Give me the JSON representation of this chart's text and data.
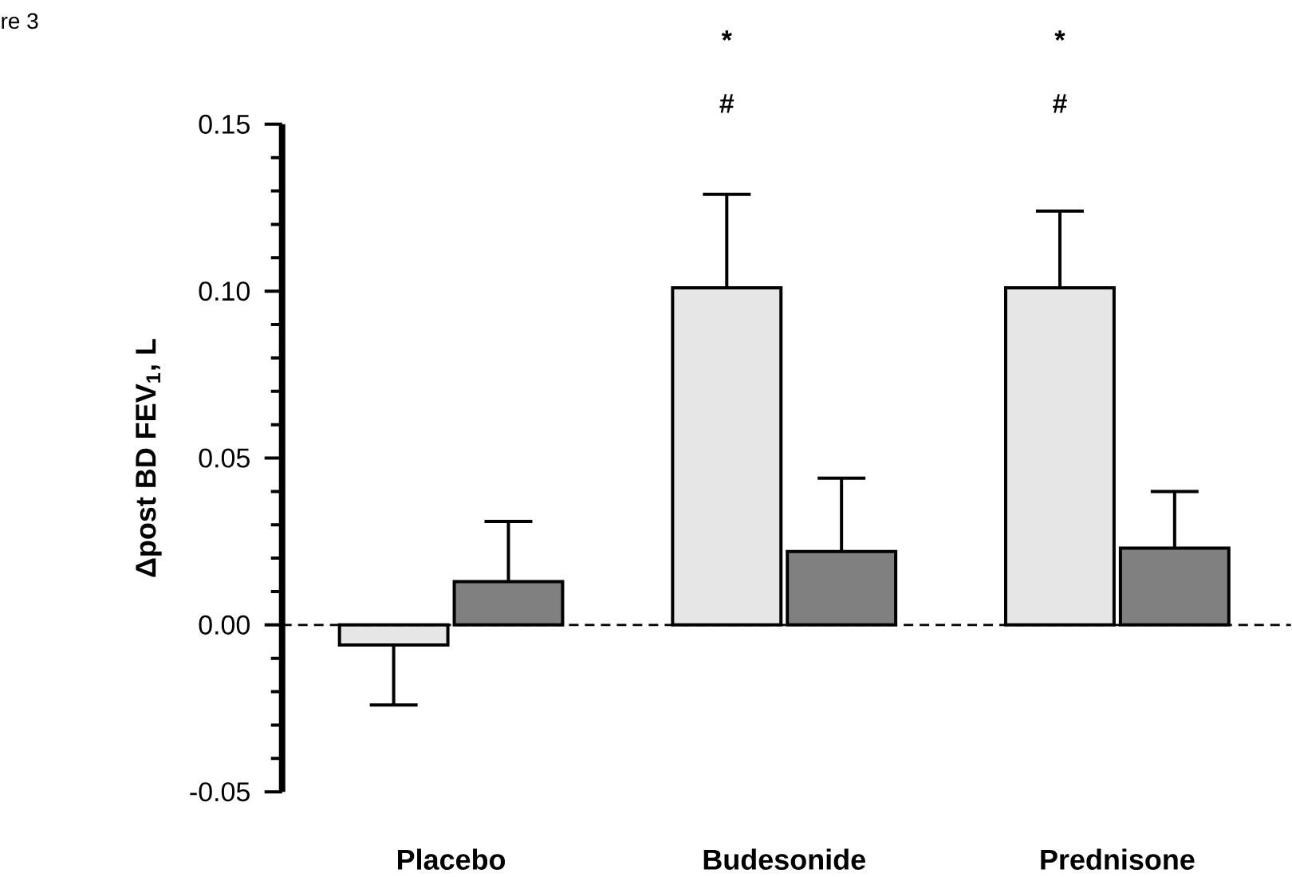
{
  "chart_data": {
    "type": "bar",
    "ylabel": "Δpost BD FEV$_{1}$, L",
    "categories": [
      "Placebo",
      "Budesonide",
      "Prednisone"
    ],
    "series": [
      {
        "color": "#e6e6e6",
        "values": [
          -0.006,
          0.101,
          0.101
        ],
        "errors": [
          [
            -0.024,
            -0.006
          ],
          [
            0.101,
            0.129
          ],
          [
            0.101,
            0.124
          ]
        ]
      },
      {
        "color": "#808080",
        "values": [
          0.013,
          0.022,
          0.023
        ],
        "errors": [
          [
            0.013,
            0.031
          ],
          [
            0.022,
            0.044
          ],
          [
            0.023,
            0.04
          ]
        ]
      }
    ],
    "ylim": [
      -0.05,
      0.15
    ],
    "yticks": [
      {
        "value": -0.05,
        "label": "-0.05"
      },
      {
        "value": 0,
        "label": "0.00"
      },
      {
        "value": 0.05,
        "label": "0.05"
      },
      {
        "value": 0.1,
        "label": "0.10"
      },
      {
        "value": 0.15,
        "label": "0.15"
      }
    ],
    "ref_lines": [
      {
        "axis": "y",
        "value": 0,
        "line_style": "dashed"
      }
    ],
    "annotations": [
      "re 3",
      "*",
      "#",
      "*",
      "#"
    ]
  }
}
